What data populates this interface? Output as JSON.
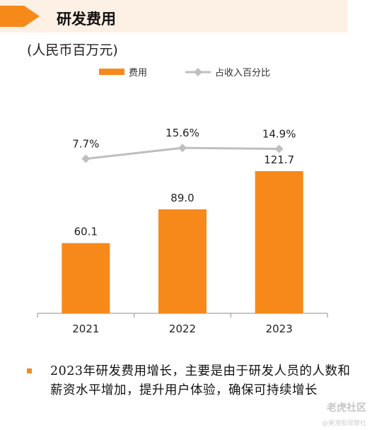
{
  "header": {
    "title": "研发费用",
    "accent_color": "#F7891B",
    "band_color": "#FDF0E4"
  },
  "unit": "(人民币百万元)",
  "chart_data": {
    "type": "bar",
    "categories": [
      "2021",
      "2022",
      "2023"
    ],
    "series": [
      {
        "name": "费用",
        "kind": "bar",
        "color": "#F7891B",
        "values": [
          60.1,
          89.0,
          121.7
        ],
        "labels": [
          "60.1",
          "89.0",
          "121.7"
        ]
      },
      {
        "name": "占收入百分比",
        "kind": "line",
        "color": "#BFBFBF",
        "values": [
          7.7,
          15.6,
          14.9
        ],
        "labels": [
          "7.7%",
          "15.6%",
          "14.9%"
        ]
      }
    ],
    "legend_position": "top-center",
    "grid": false
  },
  "note": {
    "bullet_color": "#F7891B",
    "text": "2023年研发费用增长，主要是由于研发人员的人数和薪资水平增加，提升用户体验，确保可持续增长"
  },
  "watermark": {
    "main": "老虎社区",
    "sub": "@美港股观察社"
  }
}
